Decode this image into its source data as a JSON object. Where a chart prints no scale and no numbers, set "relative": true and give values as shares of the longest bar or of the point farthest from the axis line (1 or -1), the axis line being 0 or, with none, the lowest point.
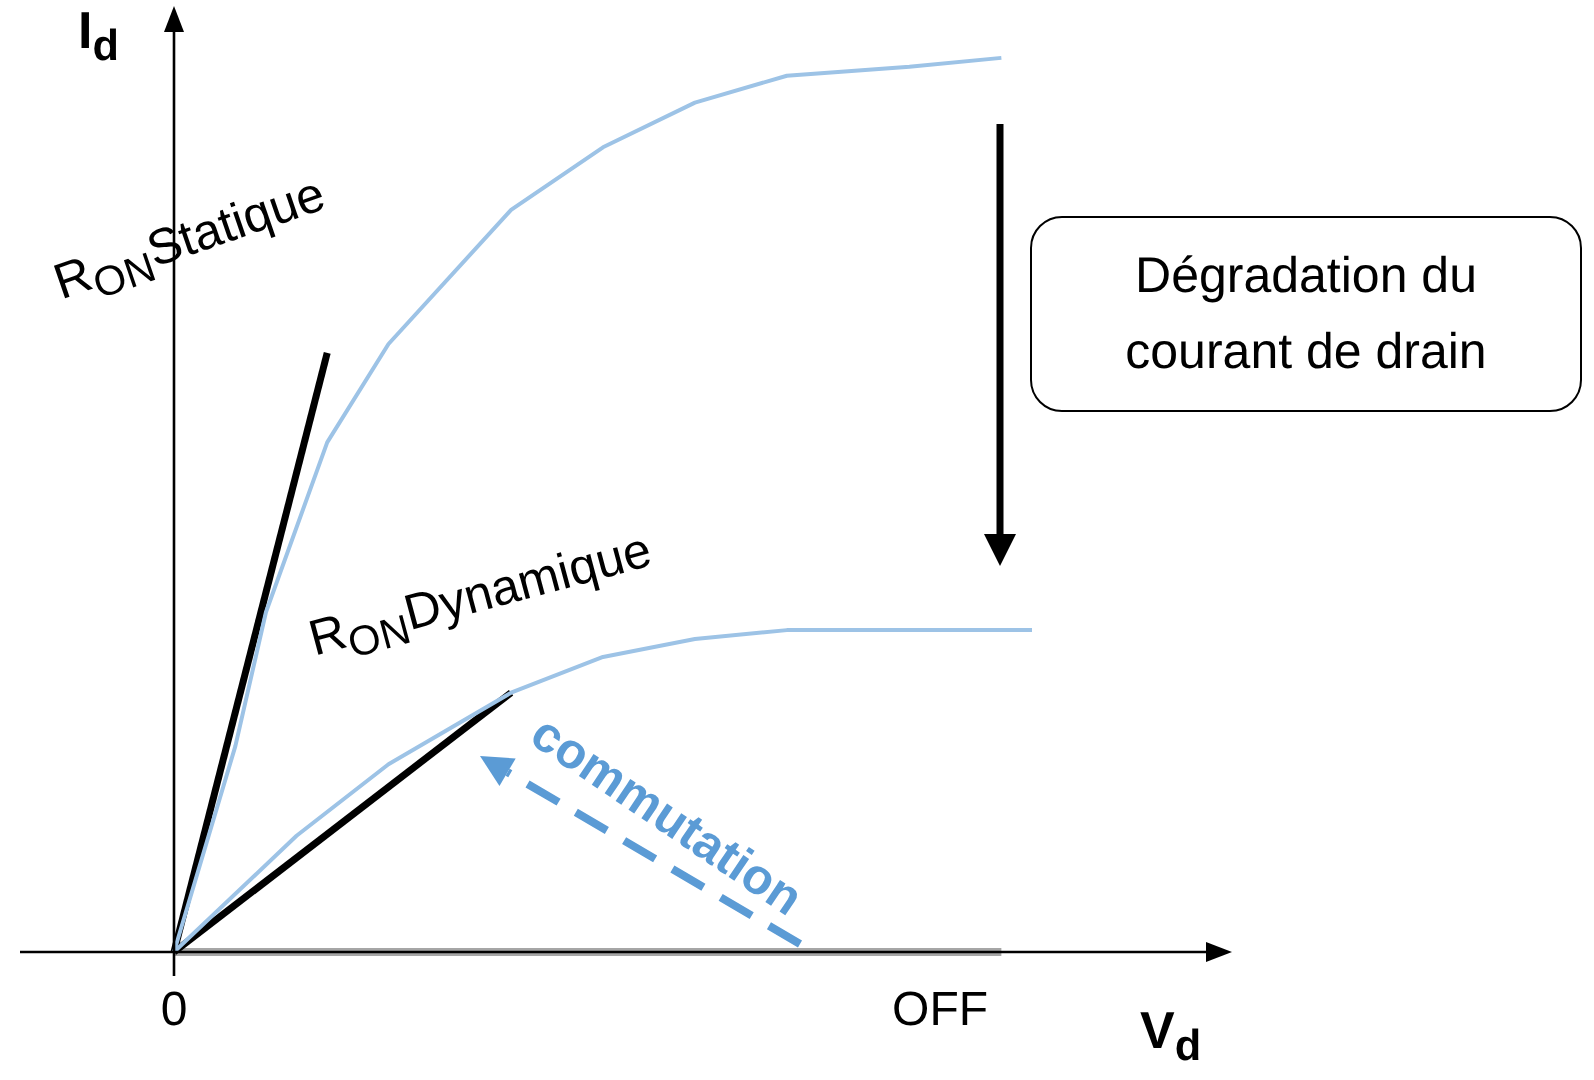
{
  "chart_data": {
    "type": "line",
    "relative": true,
    "xlabel": "V$_{d}$",
    "ylabel": "I$_{d}$",
    "categories": [
      "0",
      null,
      null,
      null,
      null,
      null,
      null,
      null,
      null,
      null,
      null,
      null,
      null,
      null,
      null,
      null,
      null,
      null,
      null,
      null,
      null,
      null,
      null,
      null,
      null,
      "OFF",
      null,
      null,
      null
    ],
    "series": [
      {
        "color": "#9dc3e6",
        "values": [
          0,
          null,
          0.23,
          0.38,
          null,
          0.57,
          null,
          0.68,
          null,
          null,
          null,
          0.83,
          null,
          null,
          0.9,
          null,
          null,
          0.95,
          null,
          null,
          0.98,
          null,
          null,
          null,
          0.99,
          null,
          null,
          1,
          null
        ]
      },
      {
        "color": "#9dc3e6",
        "values": [
          0,
          null,
          null,
          null,
          0.13,
          null,
          null,
          0.21,
          null,
          null,
          null,
          0.29,
          null,
          null,
          0.33,
          null,
          null,
          0.35,
          null,
          null,
          0.36,
          null,
          null,
          null,
          0.36,
          null,
          null,
          null,
          0.36
        ]
      },
      {
        "name": "R$_{ON}$Statique",
        "color": "#000000",
        "values": [
          0,
          null,
          null,
          null,
          null,
          0.67,
          null,
          null,
          null,
          null,
          null,
          null,
          null,
          null,
          null,
          null,
          null,
          null,
          null,
          null,
          null,
          null,
          null,
          null,
          null,
          null,
          null,
          null,
          null
        ]
      },
      {
        "name": "R$_{ON}$Dynamique",
        "color": "#000000",
        "values": [
          0,
          null,
          null,
          null,
          null,
          null,
          null,
          null,
          null,
          null,
          null,
          0.29,
          null,
          null,
          null,
          null,
          null,
          null,
          null,
          null,
          null,
          null,
          null,
          null,
          null,
          null,
          null,
          null,
          null
        ]
      },
      {
        "color": "#a6a6a6",
        "values": [
          0,
          null,
          null,
          null,
          null,
          null,
          null,
          null,
          null,
          null,
          null,
          null,
          null,
          null,
          null,
          null,
          null,
          null,
          null,
          null,
          null,
          null,
          null,
          null,
          null,
          null,
          null,
          0,
          null
        ]
      }
    ],
    "annotations": [
      "Dégradation du courant de drain",
      "commutation"
    ]
  }
}
